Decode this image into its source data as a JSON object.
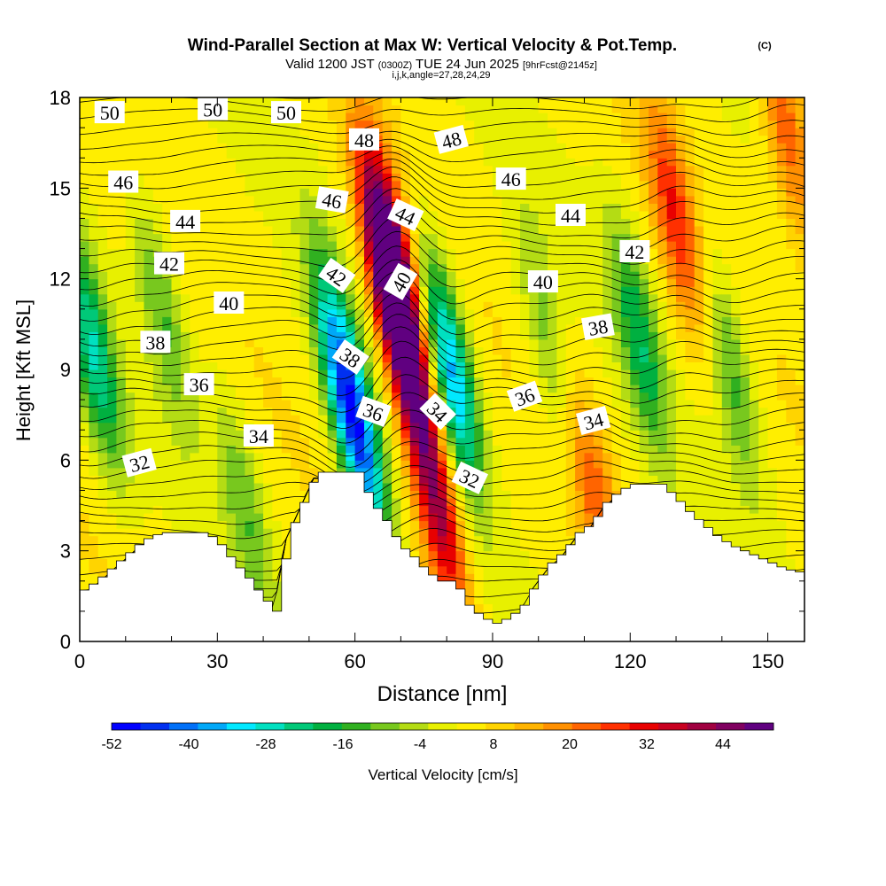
{
  "title": {
    "main": "Wind-Parallel Section at Max W: Vertical Velocity & Pot.Temp.",
    "copyright": "(C)",
    "valid_prefix": "Valid 1200 JST",
    "valid_zulu": "(0300Z)",
    "valid_date": "TUE 24 Jun 2025",
    "forecast": "[9hrFcst@2145z]",
    "ijk": "i,j,k,angle=27,28,24,29"
  },
  "chart_data": {
    "type": "heatmap",
    "xlabel": "Distance [nm]",
    "ylabel": "Height [Kft MSL]",
    "xlim": [
      0,
      158
    ],
    "ylim": [
      0,
      18
    ],
    "x_ticks": [
      0,
      30,
      60,
      90,
      120,
      150
    ],
    "y_ticks": [
      0,
      3,
      6,
      9,
      12,
      15,
      18
    ],
    "colorbar": {
      "label": "Vertical Velocity [cm/s]",
      "range": [
        -52,
        52
      ],
      "tick_labels": [
        "-52",
        "-40",
        "-28",
        "-16",
        "-4",
        "8",
        "20",
        "32",
        "44"
      ],
      "colors": [
        "#0000ff",
        "#0030f0",
        "#0070f8",
        "#00a8f8",
        "#00e8ff",
        "#00e0c0",
        "#00c878",
        "#00b040",
        "#30b020",
        "#78c81e",
        "#b4dc14",
        "#e8f000",
        "#ffee00",
        "#ffd400",
        "#ffb400",
        "#ff9000",
        "#ff6400",
        "#ff3000",
        "#e80000",
        "#c80020",
        "#a00040",
        "#800060",
        "#600080"
      ]
    },
    "vertical_velocity_features": [
      {
        "x": 3,
        "z": 9.5,
        "w": -28
      },
      {
        "x": 18,
        "z": 11,
        "w": -16
      },
      {
        "x": 57,
        "z": 9,
        "w": -34
      },
      {
        "x": 62,
        "z": 6,
        "w": -30
      },
      {
        "x": 70,
        "z": 10.5,
        "w": 50
      },
      {
        "x": 67,
        "z": 13,
        "w": 38
      },
      {
        "x": 78,
        "z": 4.5,
        "w": 36
      },
      {
        "x": 81,
        "z": 9,
        "w": -40
      },
      {
        "x": 102,
        "z": 10,
        "w": -14
      },
      {
        "x": 112,
        "z": 5,
        "w": 18
      },
      {
        "x": 122,
        "z": 10,
        "w": -22
      },
      {
        "x": 130,
        "z": 14,
        "w": 24
      },
      {
        "x": 142,
        "z": 9,
        "w": -18
      },
      {
        "x": 154,
        "z": 17,
        "w": 22
      },
      {
        "x": 36,
        "z": 4.5,
        "w": -14
      }
    ],
    "theta_labels": [
      {
        "text": "50",
        "x": 6.5,
        "z": 17.5,
        "rot": 0
      },
      {
        "text": "50",
        "x": 29,
        "z": 17.6,
        "rot": 0
      },
      {
        "text": "50",
        "x": 45,
        "z": 17.5,
        "rot": 0
      },
      {
        "text": "48",
        "x": 62,
        "z": 16.6,
        "rot": 0
      },
      {
        "text": "48",
        "x": 81,
        "z": 16.6,
        "rot": -15
      },
      {
        "text": "46",
        "x": 9.5,
        "z": 15.2,
        "rot": 0
      },
      {
        "text": "46",
        "x": 55,
        "z": 14.6,
        "rot": 10
      },
      {
        "text": "46",
        "x": 94,
        "z": 15.3,
        "rot": 0
      },
      {
        "text": "44",
        "x": 23,
        "z": 13.9,
        "rot": 0
      },
      {
        "text": "44",
        "x": 71,
        "z": 14.1,
        "rot": 25
      },
      {
        "text": "44",
        "x": 107,
        "z": 14.1,
        "rot": 0
      },
      {
        "text": "42",
        "x": 19.5,
        "z": 12.5,
        "rot": 0
      },
      {
        "text": "42",
        "x": 56,
        "z": 12.1,
        "rot": 35
      },
      {
        "text": "42",
        "x": 121,
        "z": 12.9,
        "rot": 0
      },
      {
        "text": "40",
        "x": 32.5,
        "z": 11.2,
        "rot": 0
      },
      {
        "text": "40",
        "x": 70,
        "z": 11.9,
        "rot": -60
      },
      {
        "text": "40",
        "x": 101,
        "z": 11.9,
        "rot": 0
      },
      {
        "text": "38",
        "x": 16.5,
        "z": 9.9,
        "rot": 0
      },
      {
        "text": "38",
        "x": 59,
        "z": 9.4,
        "rot": 35
      },
      {
        "text": "38",
        "x": 113,
        "z": 10.4,
        "rot": -10
      },
      {
        "text": "36",
        "x": 26,
        "z": 8.5,
        "rot": 0
      },
      {
        "text": "36",
        "x": 64,
        "z": 7.6,
        "rot": 20
      },
      {
        "text": "36",
        "x": 97,
        "z": 8.1,
        "rot": -20
      },
      {
        "text": "34",
        "x": 39,
        "z": 6.8,
        "rot": 0
      },
      {
        "text": "34",
        "x": 78,
        "z": 7.6,
        "rot": 45
      },
      {
        "text": "34",
        "x": 112,
        "z": 7.3,
        "rot": -15
      },
      {
        "text": "32",
        "x": 13,
        "z": 5.9,
        "rot": -15
      },
      {
        "text": "32",
        "x": 85,
        "z": 5.4,
        "rot": 25
      }
    ],
    "terrain_heights_kft": [
      [
        0,
        1.7
      ],
      [
        3,
        2.0
      ],
      [
        6,
        2.4
      ],
      [
        9,
        2.8
      ],
      [
        12,
        3.2
      ],
      [
        15,
        3.5
      ],
      [
        18,
        3.6
      ],
      [
        27,
        3.6
      ],
      [
        30,
        3.2
      ],
      [
        33,
        2.6
      ],
      [
        36,
        2.1
      ],
      [
        39,
        1.5
      ],
      [
        42,
        1.0
      ],
      [
        45,
        3.6
      ],
      [
        48,
        4.6
      ],
      [
        51,
        5.6
      ],
      [
        60,
        5.6
      ],
      [
        63,
        4.6
      ],
      [
        66,
        4.0
      ],
      [
        69,
        3.2
      ],
      [
        72,
        2.8
      ],
      [
        75,
        2.3
      ],
      [
        78,
        2.0
      ],
      [
        81,
        2.0
      ],
      [
        84,
        1.2
      ],
      [
        87,
        0.8
      ],
      [
        90,
        0.6
      ],
      [
        93,
        0.8
      ],
      [
        96,
        1.2
      ],
      [
        99,
        2.0
      ],
      [
        102,
        2.6
      ],
      [
        105,
        3.0
      ],
      [
        108,
        3.6
      ],
      [
        111,
        3.9
      ],
      [
        114,
        4.6
      ],
      [
        117,
        5.0
      ],
      [
        120,
        5.2
      ],
      [
        126,
        5.2
      ],
      [
        129,
        4.8
      ],
      [
        132,
        4.3
      ],
      [
        135,
        3.9
      ],
      [
        138,
        3.5
      ],
      [
        141,
        3.2
      ],
      [
        144,
        3.0
      ],
      [
        147,
        2.8
      ],
      [
        150,
        2.6
      ],
      [
        153,
        2.4
      ],
      [
        156,
        2.3
      ],
      [
        158,
        2.2
      ]
    ]
  }
}
